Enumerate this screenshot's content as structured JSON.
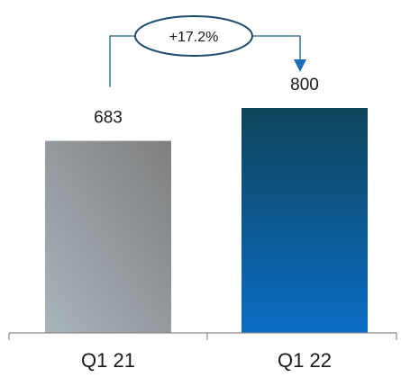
{
  "chart_data": {
    "type": "bar",
    "categories": [
      "Q1 21",
      "Q1 22"
    ],
    "values": [
      683,
      800
    ],
    "value_labels": [
      "683",
      "800"
    ],
    "ylim": [
      0,
      900
    ],
    "grid": false,
    "annotation": {
      "text": "+17.2%",
      "from_category": "Q1 21",
      "to_category": "Q1 22"
    },
    "colors": {
      "bar_1_start": "#a9b4bc",
      "bar_1_end": "#7f7f7f",
      "bar_2_top": "#0e4459",
      "bar_2_bottom": "#0b6cc4",
      "connector": "#1f5f86",
      "arrow": "#1b6fb7",
      "ellipse_stroke": "#1c4c6d",
      "axis": "#8a8a8a"
    }
  }
}
